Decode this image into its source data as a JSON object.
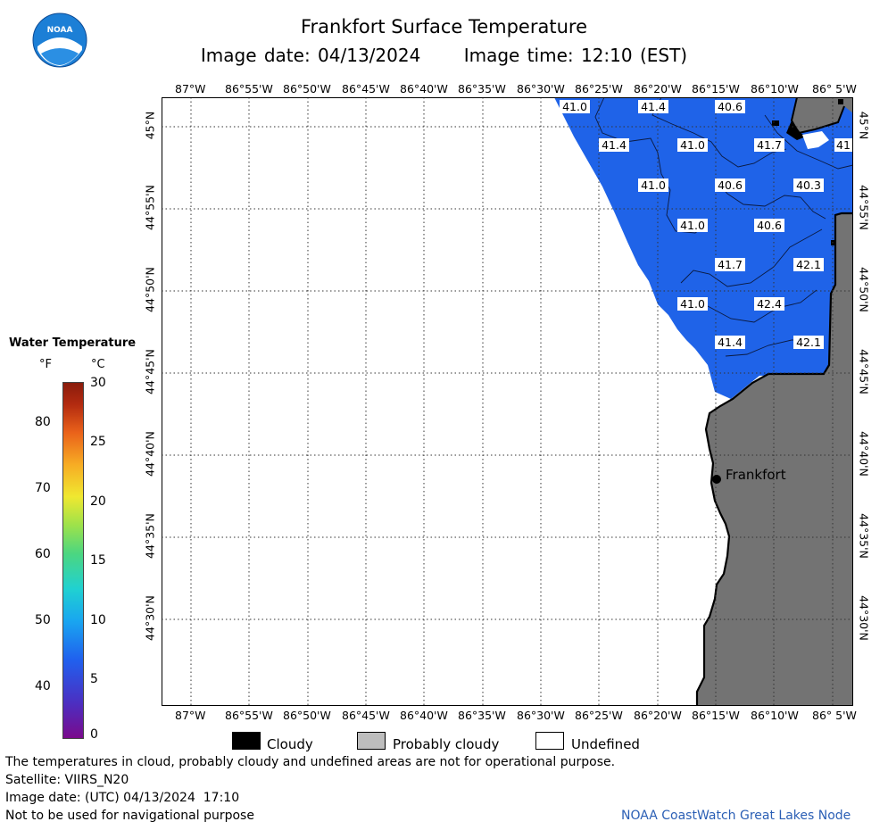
{
  "title": "Frankfort Surface Temperature",
  "image_date_label": "Image date: 04/13/2024",
  "image_time_label": "Image time: 12:10 (EST)",
  "logo_text": "NOAA",
  "legend": {
    "title": "Water Temperature",
    "unit_f": "°F",
    "unit_c": "°C",
    "fahrenheit_ticks": [
      "80",
      "70",
      "60",
      "50",
      "40"
    ],
    "celsius_ticks": [
      "30",
      "25",
      "20",
      "15",
      "10",
      "5",
      "0"
    ]
  },
  "axes": {
    "top_lon": [
      "87°W",
      "86°55'W",
      "86°50'W",
      "86°45'W",
      "86°40'W",
      "86°35'W",
      "86°30'W",
      "86°25'W",
      "86°20'W",
      "86°15'W",
      "86°10'W",
      "86° 5'W"
    ],
    "bottom_lon": [
      "87°W",
      "86°55'W",
      "86°50'W",
      "86°45'W",
      "86°40'W",
      "86°35'W",
      "86°30'W",
      "86°25'W",
      "86°20'W",
      "86°15'W",
      "86°10'W",
      "86° 5'W"
    ],
    "lat": [
      "45°N",
      "44°55'N",
      "44°50'N",
      "44°45'N",
      "44°40'N",
      "44°35'N",
      "44°30'N"
    ]
  },
  "temperatures": [
    "41.0",
    "41.4",
    "40.6",
    "41.4",
    "41.0",
    "41.7",
    "41",
    "41.0",
    "40.6",
    "40.3",
    "41.0",
    "40.6",
    "41.7",
    "42.1",
    "41.0",
    "42.4",
    "41.4",
    "42.1"
  ],
  "city": "Frankfort",
  "key": {
    "cloudy": "Cloudy",
    "probably_cloudy": "Probably cloudy",
    "undefined": "Undefined"
  },
  "notes": {
    "disclaimer": "The temperatures in cloud, probably cloudy and undefined areas are not for operational purpose.",
    "satellite": "Satellite: VIIRS_N20",
    "utc_date": "Image date: (UTC) 04/13/2024  17:10",
    "navigation": "Not to be used for navigational purpose"
  },
  "credit": "NOAA CoastWatch Great Lakes Node",
  "colors": {
    "water": "#1f63e8",
    "land": "#737373",
    "cloud": "#000000",
    "probably_cloudy": "#bdbdbd",
    "undefined": "#ffffff"
  }
}
